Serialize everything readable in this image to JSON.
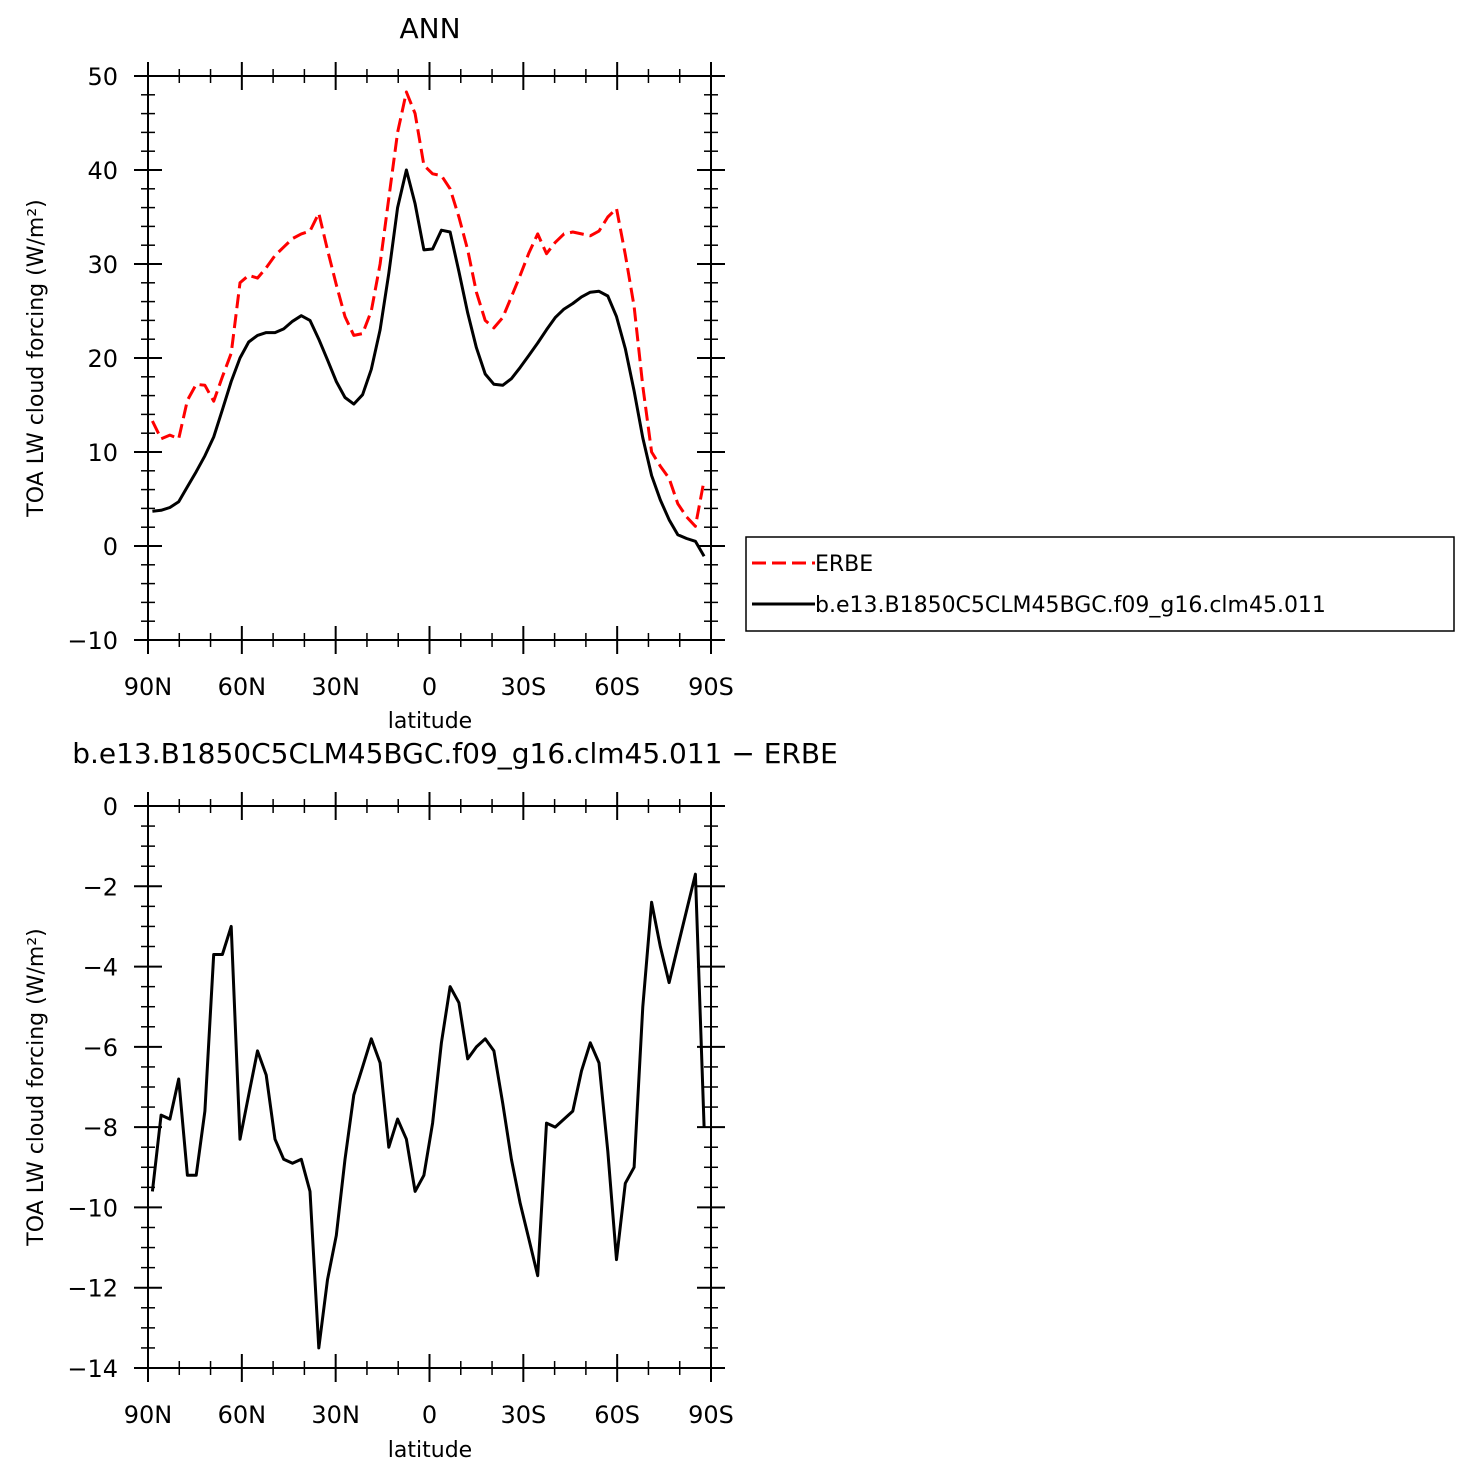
{
  "chart_data": [
    {
      "type": "line",
      "title": "ANN",
      "xlabel": "latitude",
      "ylabel": "TOA LW cloud forcing (W/m²)",
      "xlim": [
        90,
        -90
      ],
      "ylim": [
        -10,
        50
      ],
      "xticks": [
        90,
        60,
        30,
        0,
        -30,
        -60,
        -90
      ],
      "xtick_labels": [
        "90N",
        "60N",
        "30N",
        "0",
        "30S",
        "60S",
        "90S"
      ],
      "yticks": [
        -10,
        0,
        10,
        20,
        30,
        40,
        50
      ],
      "ytick_labels": [
        "−10",
        "0",
        "10",
        "20",
        "30",
        "40",
        "50"
      ],
      "legend": "right",
      "grid": false,
      "x": [
        88.6,
        85.8,
        83.0,
        80.2,
        77.4,
        74.6,
        71.8,
        69.0,
        66.2,
        63.4,
        60.6,
        57.8,
        55.0,
        52.2,
        49.4,
        46.6,
        43.8,
        41.0,
        38.2,
        35.4,
        32.6,
        29.8,
        27.0,
        24.2,
        21.4,
        18.6,
        15.8,
        13.0,
        10.2,
        7.4,
        4.6,
        1.8,
        -1.0,
        -3.8,
        -6.6,
        -9.4,
        -12.2,
        -15.0,
        -17.8,
        -20.6,
        -23.4,
        -26.2,
        -29.0,
        -31.8,
        -34.6,
        -37.4,
        -40.2,
        -43.0,
        -45.8,
        -48.6,
        -51.4,
        -54.2,
        -57.0,
        -59.8,
        -62.6,
        -65.4,
        -68.2,
        -71.0,
        -73.8,
        -76.6,
        -79.4,
        -82.2,
        -85.0,
        -87.8
      ],
      "series": [
        {
          "name": "ERBE",
          "color": "#ff0000",
          "dash": "dashed",
          "values": [
            13.3,
            11.4,
            11.8,
            11.4,
            15.5,
            17.2,
            17.1,
            15.4,
            18.0,
            20.5,
            28.0,
            28.8,
            28.5,
            29.6,
            30.9,
            31.8,
            32.7,
            33.2,
            33.5,
            35.4,
            31.5,
            27.8,
            24.4,
            22.4,
            22.6,
            25.0,
            30.0,
            37.0,
            44.0,
            48.3,
            46.0,
            40.5,
            39.6,
            39.4,
            38.0,
            35.0,
            31.5,
            27.0,
            24.0,
            23.2,
            24.3,
            26.5,
            28.8,
            31.2,
            33.2,
            31.1,
            32.3,
            33.2,
            33.4,
            33.2,
            33.0,
            33.5,
            35.0,
            35.9,
            31.0,
            25.5,
            17.0,
            10.0,
            8.5,
            7.2,
            4.5,
            3.1,
            2.1,
            7.0
          ]
        },
        {
          "name": "b.e13.B1850C5CLM45BGC.f09_g16.clm45.011",
          "color": "#000000",
          "dash": "solid",
          "values": [
            3.7,
            3.8,
            4.1,
            4.7,
            6.3,
            7.9,
            9.6,
            11.6,
            14.5,
            17.5,
            20.0,
            21.7,
            22.4,
            22.7,
            22.7,
            23.1,
            23.9,
            24.5,
            24.0,
            22.0,
            19.8,
            17.5,
            15.8,
            15.1,
            16.1,
            18.8,
            23.0,
            29.0,
            36.0,
            40.0,
            36.4,
            31.5,
            31.6,
            33.6,
            33.4,
            29.2,
            24.8,
            21.1,
            18.3,
            17.2,
            17.1,
            17.8,
            19.0,
            20.3,
            21.6,
            23.0,
            24.3,
            25.2,
            25.8,
            26.5,
            27.0,
            27.1,
            26.6,
            24.4,
            21.0,
            16.5,
            11.5,
            7.5,
            4.9,
            2.8,
            1.2,
            0.8,
            0.5,
            -1.1
          ]
        }
      ]
    },
    {
      "type": "line",
      "title": "b.e13.B1850C5CLM45BGC.f09_g16.clm45.011 − ERBE",
      "xlabel": "latitude",
      "ylabel": "TOA LW cloud forcing (W/m²)",
      "xlim": [
        90,
        -90
      ],
      "ylim": [
        -14,
        0
      ],
      "xticks": [
        90,
        60,
        30,
        0,
        -30,
        -60,
        -90
      ],
      "xtick_labels": [
        "90N",
        "60N",
        "30N",
        "0",
        "30S",
        "60S",
        "90S"
      ],
      "yticks": [
        -14,
        -12,
        -10,
        -8,
        -6,
        -4,
        -2,
        0
      ],
      "ytick_labels": [
        "−14",
        "−12",
        "−10",
        "−8",
        "−6",
        "−4",
        "−2",
        "0"
      ],
      "grid": false,
      "x": [
        88.6,
        85.8,
        83.0,
        80.2,
        77.4,
        74.6,
        71.8,
        69.0,
        66.2,
        63.4,
        60.6,
        57.8,
        55.0,
        52.2,
        49.4,
        46.6,
        43.8,
        41.0,
        38.2,
        35.4,
        32.6,
        29.8,
        27.0,
        24.2,
        21.4,
        18.6,
        15.8,
        13.0,
        10.2,
        7.4,
        4.6,
        1.8,
        -1.0,
        -3.8,
        -6.6,
        -9.4,
        -12.2,
        -15.0,
        -17.8,
        -20.6,
        -23.4,
        -26.2,
        -29.0,
        -31.8,
        -34.6,
        -37.4,
        -40.2,
        -43.0,
        -45.8,
        -48.6,
        -51.4,
        -54.2,
        -57.0,
        -59.8,
        -62.6,
        -65.4,
        -68.2,
        -71.0,
        -73.8,
        -76.6,
        -79.4,
        -82.2,
        -85.0,
        -87.8
      ],
      "series": [
        {
          "name": "",
          "color": "#000000",
          "dash": "solid",
          "values": [
            -9.6,
            -7.7,
            -7.8,
            -6.8,
            -9.2,
            -9.2,
            -7.6,
            -3.7,
            -3.7,
            -3.0,
            -8.3,
            -7.2,
            -6.1,
            -6.7,
            -8.3,
            -8.8,
            -8.9,
            -8.8,
            -9.6,
            -13.5,
            -11.8,
            -10.7,
            -8.8,
            -7.2,
            -6.5,
            -5.8,
            -6.4,
            -8.5,
            -7.8,
            -8.3,
            -9.6,
            -9.2,
            -7.9,
            -5.9,
            -4.5,
            -4.9,
            -6.3,
            -6.0,
            -5.8,
            -6.1,
            -7.4,
            -8.8,
            -9.9,
            -10.8,
            -11.7,
            -7.9,
            -8.0,
            -7.8,
            -7.6,
            -6.6,
            -5.9,
            -6.4,
            -8.6,
            -11.3,
            -9.4,
            -9.0,
            -5.0,
            -2.4,
            -3.5,
            -4.4,
            -3.5,
            -2.6,
            -1.7,
            -8.0
          ]
        }
      ]
    }
  ]
}
